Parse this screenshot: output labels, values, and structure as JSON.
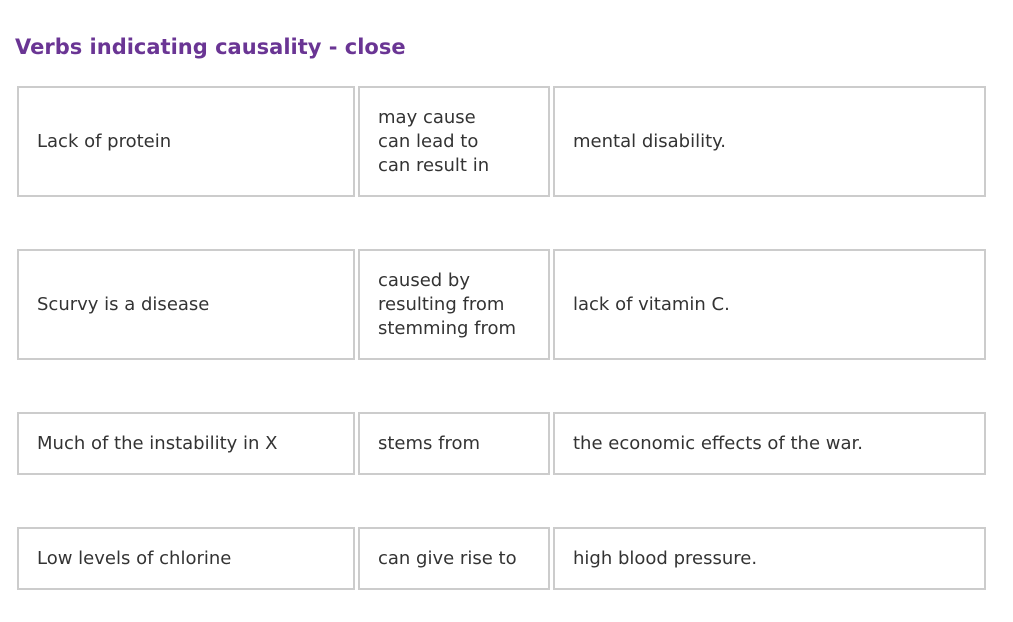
{
  "page": {
    "title": "Verbs indicating causality - close",
    "title_color": "#6a3594",
    "border_color": "#cccccc"
  },
  "rows": [
    {
      "subject": "Lack of protein",
      "verbs": [
        "may cause",
        "can lead to",
        "can result in"
      ],
      "object": "mental disability."
    },
    {
      "subject": "Scurvy is a disease",
      "verbs": [
        "caused by",
        "resulting from",
        "stemming from"
      ],
      "object": "lack of vitamin C."
    },
    {
      "subject": "Much of the instability in X",
      "verbs": [
        "stems from"
      ],
      "object": "the economic effects of the war."
    },
    {
      "subject": "Low levels of chlorine",
      "verbs": [
        "can give rise to"
      ],
      "object": "high blood pressure."
    }
  ]
}
